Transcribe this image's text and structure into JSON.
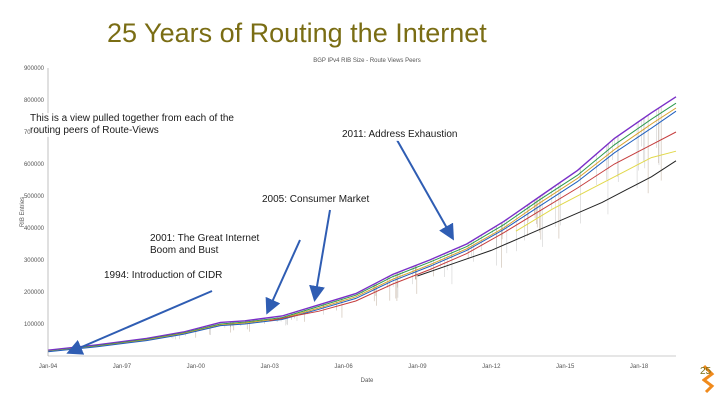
{
  "slide": {
    "title": "25 Years of Routing the Internet",
    "page_number": "25"
  },
  "annotations": {
    "peers_note": "This is a view pulled together from each of the routing peers of Route-Views",
    "event_2011": "2011: Address Exhaustion",
    "event_2005": "2005: Consumer Market",
    "event_2001": "2001: The Great Internet Boom and Bust",
    "event_1994": "1994: Introduction of CIDR"
  },
  "colors": {
    "title": "#7a6d14",
    "arrow": "#2f5db3",
    "series_main": "#7a2fc8"
  },
  "chart_data": {
    "type": "line",
    "title": "BGP IPv4 RIB Size - Route Views Peers",
    "xlabel": "Date",
    "ylabel": "RIB Entries",
    "x_ticks": [
      "Jan-94",
      "Jan-97",
      "Jan-00",
      "Jan-03",
      "Jan-06",
      "Jan-09",
      "Jan-12",
      "Jan-15",
      "Jan-18"
    ],
    "y_ticks": [
      100000,
      200000,
      300000,
      400000,
      500000,
      600000,
      700000,
      800000,
      900000
    ],
    "y_tick_labels": [
      "100000",
      "200000",
      "300000",
      "400000",
      "500000",
      "600000",
      "700000",
      "800000",
      "900000"
    ],
    "ylim": [
      0,
      900000
    ],
    "xlim": [
      1994,
      2019.5
    ],
    "grid": false,
    "series": [
      {
        "values": [
          [
            1994,
            18000
          ],
          [
            1996,
            35000
          ],
          [
            1998,
            55000
          ],
          [
            1999.5,
            75000
          ],
          [
            2001,
            105000
          ],
          [
            2002,
            110000
          ],
          [
            2003.5,
            125000
          ],
          [
            2005,
            160000
          ],
          [
            2006.5,
            195000
          ],
          [
            2008,
            255000
          ],
          [
            2009.5,
            300000
          ],
          [
            2011,
            350000
          ],
          [
            2012.5,
            420000
          ],
          [
            2014,
            500000
          ],
          [
            2015.5,
            580000
          ],
          [
            2017,
            680000
          ],
          [
            2018.5,
            760000
          ],
          [
            2019.5,
            810000
          ]
        ]
      },
      {
        "values": [
          [
            1994,
            15000
          ],
          [
            1996,
            32000
          ],
          [
            1998,
            52000
          ],
          [
            1999.5,
            72000
          ],
          [
            2001,
            100000
          ],
          [
            2002,
            106000
          ],
          [
            2003.5,
            120000
          ],
          [
            2005,
            155000
          ],
          [
            2006.5,
            190000
          ],
          [
            2008,
            248000
          ],
          [
            2009.5,
            293000
          ],
          [
            2011,
            342000
          ],
          [
            2012.5,
            410000
          ],
          [
            2014,
            490000
          ],
          [
            2015.5,
            565000
          ],
          [
            2017,
            660000
          ],
          [
            2018.5,
            740000
          ],
          [
            2019.5,
            790000
          ]
        ]
      },
      {
        "values": [
          [
            1994,
            14000
          ],
          [
            1996,
            30000
          ],
          [
            1998,
            50000
          ],
          [
            1999.5,
            70000
          ],
          [
            2001,
            97000
          ],
          [
            2002,
            103000
          ],
          [
            2003.5,
            117000
          ],
          [
            2005,
            150000
          ],
          [
            2006.5,
            185000
          ],
          [
            2008,
            240000
          ],
          [
            2009.5,
            285000
          ],
          [
            2011,
            335000
          ],
          [
            2012.5,
            400000
          ],
          [
            2014,
            480000
          ],
          [
            2015.5,
            555000
          ],
          [
            2017,
            645000
          ],
          [
            2018.5,
            725000
          ],
          [
            2019.5,
            775000
          ]
        ]
      },
      {
        "values": [
          [
            1994,
            13000
          ],
          [
            1996,
            29000
          ],
          [
            1998,
            48000
          ],
          [
            1999.5,
            68000
          ],
          [
            2001,
            95000
          ],
          [
            2002,
            100000
          ],
          [
            2003.5,
            114000
          ],
          [
            2005,
            146000
          ],
          [
            2006.5,
            180000
          ],
          [
            2008,
            235000
          ],
          [
            2009.5,
            280000
          ],
          [
            2011,
            330000
          ],
          [
            2012.5,
            395000
          ],
          [
            2014,
            470000
          ],
          [
            2015.5,
            545000
          ],
          [
            2017,
            635000
          ],
          [
            2018.5,
            712000
          ],
          [
            2019.5,
            765000
          ]
        ]
      },
      {
        "values": [
          [
            2003,
            110000
          ],
          [
            2005,
            140000
          ],
          [
            2006.5,
            172000
          ],
          [
            2008,
            225000
          ],
          [
            2009.5,
            270000
          ],
          [
            2011,
            320000
          ],
          [
            2012.5,
            385000
          ],
          [
            2014,
            455000
          ],
          [
            2015.5,
            525000
          ],
          [
            2017,
            600000
          ],
          [
            2018.5,
            660000
          ],
          [
            2019.5,
            700000
          ]
        ]
      },
      {
        "values": [
          [
            2009,
            250000
          ],
          [
            2010.5,
            290000
          ],
          [
            2012,
            330000
          ],
          [
            2013.5,
            380000
          ],
          [
            2015,
            430000
          ],
          [
            2016.5,
            480000
          ],
          [
            2017.5,
            520000
          ],
          [
            2018.5,
            560000
          ],
          [
            2019.5,
            610000
          ]
        ]
      },
      {
        "values": [
          [
            2013,
            390000
          ],
          [
            2014.5,
            460000
          ],
          [
            2016,
            520000
          ],
          [
            2017.5,
            580000
          ],
          [
            2018.5,
            620000
          ],
          [
            2019.5,
            640000
          ]
        ]
      }
    ]
  }
}
